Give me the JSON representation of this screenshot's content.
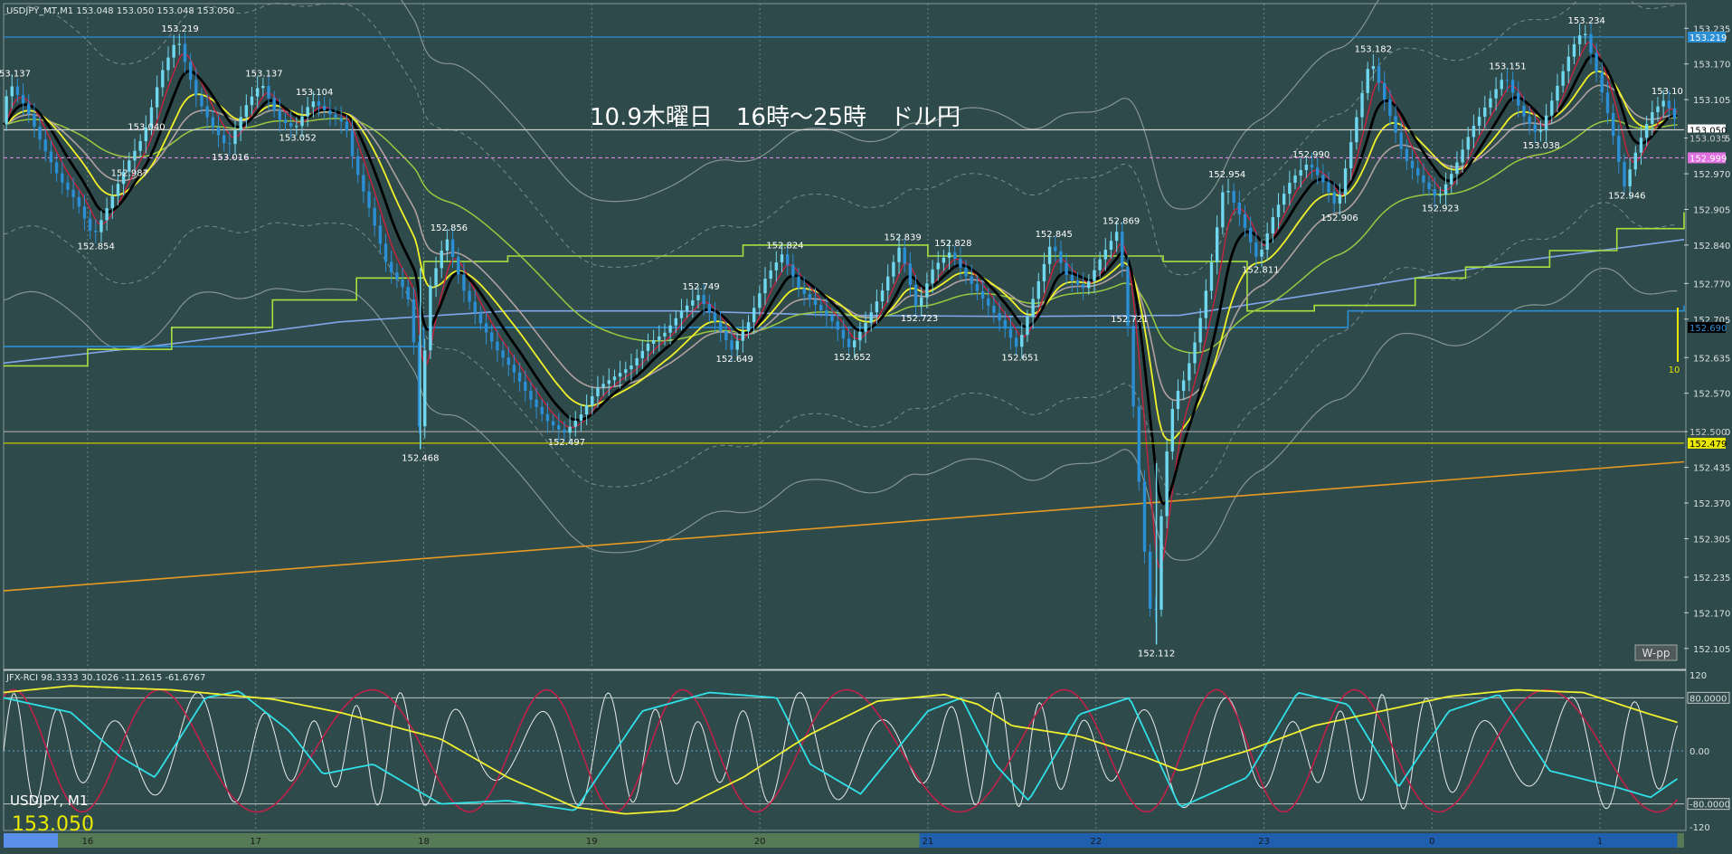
{
  "chart_data": [
    {
      "type": "candlestick",
      "title": "10.9木曜日　16時～25時　ドル円",
      "symbol_header": "USDJPY_MT,M1  153.048 153.050 153.048 153.050",
      "watermark_symbol": "USDJPY, M1",
      "watermark_price": "153.050",
      "ylim": [
        152.07,
        153.28
      ],
      "yticks": [
        "153.235",
        "153.170",
        "153.105",
        "153.035",
        "152.970",
        "152.905",
        "152.840",
        "152.770",
        "152.705",
        "152.635",
        "152.570",
        "152.500",
        "152.435",
        "152.370",
        "152.305",
        "152.235",
        "152.170",
        "152.105"
      ],
      "xticks": [
        {
          "label": "16",
          "t": 0.5
        },
        {
          "label": "17",
          "t": 1.5
        },
        {
          "label": "18",
          "t": 2.5
        },
        {
          "label": "19",
          "t": 3.5
        },
        {
          "label": "20",
          "t": 4.5
        },
        {
          "label": "21",
          "t": 5.5
        },
        {
          "label": "22",
          "t": 6.5
        },
        {
          "label": "23",
          "t": 7.5
        },
        {
          "label": "0",
          "t": 8.5
        },
        {
          "label": "1",
          "t": 9.5
        }
      ],
      "price_path": [
        [
          0.0,
          153.06
        ],
        [
          0.05,
          153.137
        ],
        [
          0.15,
          153.09
        ],
        [
          0.25,
          153.02
        ],
        [
          0.35,
          152.96
        ],
        [
          0.45,
          152.92
        ],
        [
          0.55,
          152.854
        ],
        [
          0.65,
          152.92
        ],
        [
          0.75,
          152.987
        ],
        [
          0.85,
          153.04
        ],
        [
          0.95,
          153.15
        ],
        [
          1.05,
          153.219
        ],
        [
          1.15,
          153.12
        ],
        [
          1.25,
          153.06
        ],
        [
          1.35,
          153.016
        ],
        [
          1.45,
          153.09
        ],
        [
          1.55,
          153.137
        ],
        [
          1.65,
          153.07
        ],
        [
          1.75,
          153.052
        ],
        [
          1.85,
          153.104
        ],
        [
          1.95,
          153.08
        ],
        [
          2.05,
          153.06
        ],
        [
          2.1,
          152.99
        ],
        [
          2.2,
          152.9
        ],
        [
          2.3,
          152.8
        ],
        [
          2.4,
          152.76
        ],
        [
          2.45,
          152.72
        ],
        [
          2.48,
          152.468
        ],
        [
          2.55,
          152.76
        ],
        [
          2.65,
          152.856
        ],
        [
          2.75,
          152.76
        ],
        [
          2.85,
          152.7
        ],
        [
          2.95,
          152.65
        ],
        [
          3.05,
          152.61
        ],
        [
          3.15,
          152.56
        ],
        [
          3.25,
          152.52
        ],
        [
          3.35,
          152.497
        ],
        [
          3.45,
          152.53
        ],
        [
          3.55,
          152.58
        ],
        [
          3.65,
          152.6
        ],
        [
          3.75,
          152.62
        ],
        [
          3.85,
          152.66
        ],
        [
          3.95,
          152.68
        ],
        [
          4.05,
          152.72
        ],
        [
          4.15,
          152.749
        ],
        [
          4.25,
          152.7
        ],
        [
          4.35,
          152.649
        ],
        [
          4.45,
          152.7
        ],
        [
          4.55,
          152.78
        ],
        [
          4.65,
          152.824
        ],
        [
          4.75,
          152.76
        ],
        [
          4.85,
          152.73
        ],
        [
          4.95,
          152.7
        ],
        [
          5.05,
          152.652
        ],
        [
          5.15,
          152.7
        ],
        [
          5.25,
          152.76
        ],
        [
          5.35,
          152.839
        ],
        [
          5.45,
          152.723
        ],
        [
          5.55,
          152.8
        ],
        [
          5.65,
          152.828
        ],
        [
          5.75,
          152.78
        ],
        [
          5.85,
          152.74
        ],
        [
          5.95,
          152.7
        ],
        [
          6.05,
          152.651
        ],
        [
          6.15,
          152.75
        ],
        [
          6.25,
          152.845
        ],
        [
          6.35,
          152.78
        ],
        [
          6.45,
          152.76
        ],
        [
          6.55,
          152.82
        ],
        [
          6.65,
          152.869
        ],
        [
          6.7,
          152.721
        ],
        [
          6.75,
          152.5
        ],
        [
          6.8,
          152.3
        ],
        [
          6.86,
          152.112
        ],
        [
          6.92,
          152.42
        ],
        [
          6.98,
          152.56
        ],
        [
          7.05,
          152.6
        ],
        [
          7.12,
          152.68
        ],
        [
          7.2,
          152.8
        ],
        [
          7.28,
          152.954
        ],
        [
          7.38,
          152.89
        ],
        [
          7.48,
          152.811
        ],
        [
          7.58,
          152.9
        ],
        [
          7.68,
          152.96
        ],
        [
          7.78,
          152.99
        ],
        [
          7.88,
          152.95
        ],
        [
          7.95,
          152.906
        ],
        [
          8.05,
          153.05
        ],
        [
          8.15,
          153.182
        ],
        [
          8.25,
          153.09
        ],
        [
          8.35,
          153.0
        ],
        [
          8.45,
          152.96
        ],
        [
          8.55,
          152.923
        ],
        [
          8.65,
          152.98
        ],
        [
          8.75,
          153.05
        ],
        [
          8.85,
          153.1
        ],
        [
          8.95,
          153.151
        ],
        [
          9.05,
          153.08
        ],
        [
          9.15,
          153.038
        ],
        [
          9.25,
          153.12
        ],
        [
          9.35,
          153.2
        ],
        [
          9.42,
          153.234
        ],
        [
          9.5,
          153.15
        ],
        [
          9.58,
          153.06
        ],
        [
          9.66,
          152.946
        ],
        [
          9.74,
          153.02
        ],
        [
          9.82,
          153.08
        ],
        [
          9.9,
          153.105
        ],
        [
          9.96,
          153.07
        ]
      ],
      "price_labels": [
        {
          "t": 0.05,
          "v": 153.137,
          "label": "153.137",
          "pos": "above"
        },
        {
          "t": 1.05,
          "v": 153.219,
          "label": "153.219",
          "pos": "above"
        },
        {
          "t": 1.55,
          "v": 153.137,
          "label": "153.137",
          "pos": "above"
        },
        {
          "t": 1.85,
          "v": 153.104,
          "label": "153.104",
          "pos": "above"
        },
        {
          "t": 0.85,
          "v": 153.04,
          "label": "153.040",
          "pos": "above"
        },
        {
          "t": 1.75,
          "v": 153.052,
          "label": "153.052",
          "pos": "below"
        },
        {
          "t": 1.35,
          "v": 153.016,
          "label": "153.016",
          "pos": "below"
        },
        {
          "t": 0.75,
          "v": 152.987,
          "label": "152.987",
          "pos": "below"
        },
        {
          "t": 0.55,
          "v": 152.854,
          "label": "152.854",
          "pos": "below"
        },
        {
          "t": 2.65,
          "v": 152.856,
          "label": "152.856",
          "pos": "above"
        },
        {
          "t": 2.48,
          "v": 152.468,
          "label": "152.468",
          "pos": "below"
        },
        {
          "t": 3.35,
          "v": 152.497,
          "label": "152.497",
          "pos": "below"
        },
        {
          "t": 4.15,
          "v": 152.749,
          "label": "152.749",
          "pos": "above"
        },
        {
          "t": 4.35,
          "v": 152.649,
          "label": "152.649",
          "pos": "below"
        },
        {
          "t": 4.65,
          "v": 152.824,
          "label": "152.824",
          "pos": "above"
        },
        {
          "t": 5.05,
          "v": 152.652,
          "label": "152.652",
          "pos": "below"
        },
        {
          "t": 5.35,
          "v": 152.839,
          "label": "152.839",
          "pos": "above"
        },
        {
          "t": 5.45,
          "v": 152.723,
          "label": "152.723",
          "pos": "below"
        },
        {
          "t": 5.65,
          "v": 152.828,
          "label": "152.828",
          "pos": "above"
        },
        {
          "t": 6.05,
          "v": 152.651,
          "label": "152.651",
          "pos": "below"
        },
        {
          "t": 6.25,
          "v": 152.845,
          "label": "152.845",
          "pos": "above"
        },
        {
          "t": 6.65,
          "v": 152.869,
          "label": "152.869",
          "pos": "above"
        },
        {
          "t": 6.7,
          "v": 152.721,
          "label": "152.721",
          "pos": "below"
        },
        {
          "t": 6.86,
          "v": 152.112,
          "label": "152.112",
          "pos": "below"
        },
        {
          "t": 7.28,
          "v": 152.954,
          "label": "152.954",
          "pos": "above"
        },
        {
          "t": 7.48,
          "v": 152.811,
          "label": "152.811",
          "pos": "below"
        },
        {
          "t": 7.78,
          "v": 152.99,
          "label": "152.990",
          "pos": "above"
        },
        {
          "t": 7.95,
          "v": 152.906,
          "label": "152.906",
          "pos": "below"
        },
        {
          "t": 8.15,
          "v": 153.182,
          "label": "153.182",
          "pos": "above"
        },
        {
          "t": 8.55,
          "v": 152.923,
          "label": "152.923",
          "pos": "below"
        },
        {
          "t": 8.95,
          "v": 153.151,
          "label": "153.151",
          "pos": "above"
        },
        {
          "t": 9.15,
          "v": 153.038,
          "label": "153.038",
          "pos": "below"
        },
        {
          "t": 9.42,
          "v": 153.234,
          "label": "153.234",
          "pos": "above"
        },
        {
          "t": 9.66,
          "v": 152.946,
          "label": "152.946",
          "pos": "below"
        },
        {
          "t": 9.9,
          "v": 153.105,
          "label": "153.10",
          "pos": "above"
        }
      ],
      "horizontal_lines": [
        {
          "v": 153.219,
          "color": "#2b8fd6",
          "tag": "153.219",
          "tag_bg": "#2b8fd6",
          "tag_fg": "#ffffff"
        },
        {
          "v": 153.05,
          "color": "#d0d0d0",
          "tag": "153.050",
          "tag_bg": "#ffffff",
          "tag_fg": "#000000"
        },
        {
          "v": 152.999,
          "color": "#e080e0",
          "dashed": true,
          "tag": "152.999",
          "tag_bg": "#e070e0",
          "tag_fg": "#ffffff"
        },
        {
          "v": 152.5,
          "color": "#a0a0a0",
          "tag": "152.500",
          "tag_bg": "#2f4a4a",
          "tag_fg": "#c8c8c8"
        },
        {
          "v": 152.479,
          "color": "#c8c800",
          "tag": "152.479",
          "tag_bg": "#e8e800",
          "tag_fg": "#000000"
        }
      ],
      "right_tags": [
        {
          "v": 153.035,
          "label": "153.035",
          "bg": "#2f4a4a",
          "fg": "#c8c8c8"
        },
        {
          "v": 152.69,
          "label": "152.690",
          "bg": "#000000",
          "fg": "#2b8fd6"
        }
      ],
      "orange_line": [
        [
          0,
          152.21
        ],
        [
          10,
          152.445
        ]
      ],
      "light_blue_line": [
        [
          0,
          152.625
        ],
        [
          1,
          152.66
        ],
        [
          2,
          152.7
        ],
        [
          3,
          152.72
        ],
        [
          4,
          152.72
        ],
        [
          5,
          152.712
        ],
        [
          6,
          152.71
        ],
        [
          7,
          152.712
        ],
        [
          8,
          152.76
        ],
        [
          9,
          152.81
        ],
        [
          10,
          152.85
        ]
      ],
      "blue_step_line": [
        [
          0,
          152.655
        ],
        [
          2.5,
          152.69
        ],
        [
          8.0,
          152.72
        ],
        [
          10,
          152.73
        ]
      ],
      "green_step_line": [
        [
          0,
          152.62
        ],
        [
          0.5,
          152.65
        ],
        [
          1,
          152.69
        ],
        [
          1.6,
          152.74
        ],
        [
          2.1,
          152.78
        ],
        [
          2.5,
          152.81
        ],
        [
          3.0,
          152.82
        ],
        [
          4.4,
          152.84
        ],
        [
          5.5,
          152.82
        ],
        [
          6.9,
          152.81
        ],
        [
          7.4,
          152.72
        ],
        [
          7.8,
          152.73
        ],
        [
          8.4,
          152.78
        ],
        [
          8.7,
          152.8
        ],
        [
          9.2,
          152.83
        ],
        [
          9.6,
          152.87
        ],
        [
          10,
          152.9
        ]
      ],
      "sub_indicator": "JFX-RCI 98.3333 30.1026 -11.2615 -61.6767",
      "sub_ylim": [
        -120,
        120
      ],
      "sub_levels": [
        {
          "v": 80,
          "label": "80.0000",
          "boxed": true
        },
        {
          "v": -80,
          "label": "-80.0000",
          "boxed": true
        },
        {
          "v": 0,
          "label": "0.00",
          "boxed": false
        },
        {
          "v": 120,
          "label": "120",
          "boxed": false
        },
        {
          "v": -120,
          "label": "-120",
          "boxed": false
        }
      ],
      "rci_yellow": [
        [
          0,
          88
        ],
        [
          0.4,
          98
        ],
        [
          1.0,
          92
        ],
        [
          1.6,
          78
        ],
        [
          2.0,
          58
        ],
        [
          2.6,
          18
        ],
        [
          3.0,
          -40
        ],
        [
          3.4,
          -85
        ],
        [
          3.7,
          -95
        ],
        [
          4.0,
          -90
        ],
        [
          4.4,
          -40
        ],
        [
          4.8,
          25
        ],
        [
          5.2,
          75
        ],
        [
          5.6,
          85
        ],
        [
          5.8,
          70
        ],
        [
          6.0,
          38
        ],
        [
          6.4,
          22
        ],
        [
          6.8,
          -10
        ],
        [
          7.0,
          -30
        ],
        [
          7.4,
          0
        ],
        [
          7.8,
          38
        ],
        [
          8.2,
          60
        ],
        [
          8.6,
          82
        ],
        [
          9.0,
          92
        ],
        [
          9.4,
          88
        ],
        [
          9.8,
          55
        ],
        [
          10,
          40
        ]
      ],
      "rci_cyan": [
        [
          0,
          80
        ],
        [
          0.4,
          58
        ],
        [
          0.7,
          -10
        ],
        [
          0.9,
          -40
        ],
        [
          1.2,
          80
        ],
        [
          1.4,
          90
        ],
        [
          1.7,
          30
        ],
        [
          1.9,
          -35
        ],
        [
          2.2,
          -20
        ],
        [
          2.6,
          -80
        ],
        [
          3.0,
          -75
        ],
        [
          3.4,
          -90
        ],
        [
          3.8,
          60
        ],
        [
          4.2,
          88
        ],
        [
          4.6,
          80
        ],
        [
          4.8,
          -20
        ],
        [
          5.1,
          -65
        ],
        [
          5.5,
          60
        ],
        [
          5.7,
          80
        ],
        [
          5.9,
          -20
        ],
        [
          6.1,
          -75
        ],
        [
          6.4,
          55
        ],
        [
          6.7,
          80
        ],
        [
          7.0,
          -85
        ],
        [
          7.4,
          -40
        ],
        [
          7.7,
          88
        ],
        [
          8.0,
          70
        ],
        [
          8.3,
          -55
        ],
        [
          8.6,
          60
        ],
        [
          8.9,
          85
        ],
        [
          9.2,
          -30
        ],
        [
          9.6,
          -55
        ],
        [
          9.8,
          -70
        ],
        [
          10,
          -35
        ]
      ]
    }
  ],
  "buttons": {
    "wpp": "W-pp"
  },
  "marker_value": "10"
}
